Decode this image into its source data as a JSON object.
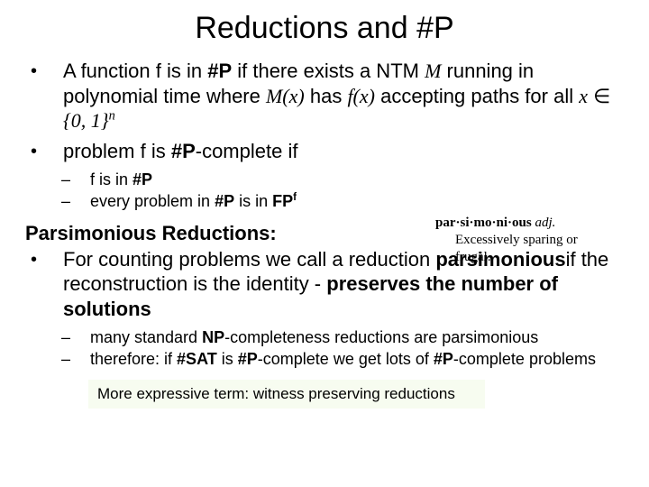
{
  "title": "Reductions and #P",
  "bullets": {
    "b1_pre": "A function f is in ",
    "b1_sharpP": "#P",
    "b1_mid1": " if  there exists a NTM ",
    "b1_M": "M",
    "b1_mid2": " running in polynomial time where ",
    "b1_Mx": "M(x)",
    "b1_mid3": " has ",
    "b1_fx": "f(x)",
    "b1_mid4": " accepting paths for all ",
    "b1_x": "x",
    "b1_in": " ∈ ",
    "b1_set": "{0, 1}",
    "b1_sup": "n",
    "b2_pre": "problem f is ",
    "b2_bold": "#P",
    "b2_post": "-complete if",
    "s1_pre": "f is in ",
    "s1_bold": "#P",
    "s2_pre": "every problem in ",
    "s2_sharpP": "#P",
    "s2_mid": " is in ",
    "s2_FP": "FP",
    "s2_sup": "f"
  },
  "section_head": "Parsimonious Reductions:",
  "parsi": {
    "pre": "For counting problems we call a reduction ",
    "word": "parsimonious",
    "mid": "if the reconstruction is the identity - ",
    "bold": "preserves the number of solutions"
  },
  "subs2": {
    "s1_pre": "many standard ",
    "s1_np": "NP",
    "s1_post": "-completeness reductions are parsimonious",
    "s2_pre": "therefore: if ",
    "s2_sat": "#SAT",
    "s2_mid": " is ",
    "s2_p1": "#P",
    "s2_mid2": "-complete we get lots of ",
    "s2_p2": "#P",
    "s2_post": "-complete problems"
  },
  "def": {
    "word": "par·si·mo·ni·ous ",
    "pos": "adj.",
    "meaning": "Excessively sparing or frugal."
  },
  "note": "More expressive term: witness preserving reductions",
  "colors": {
    "background": "#ffffff",
    "text": "#000000",
    "note_bg": "#f7fcf0"
  }
}
